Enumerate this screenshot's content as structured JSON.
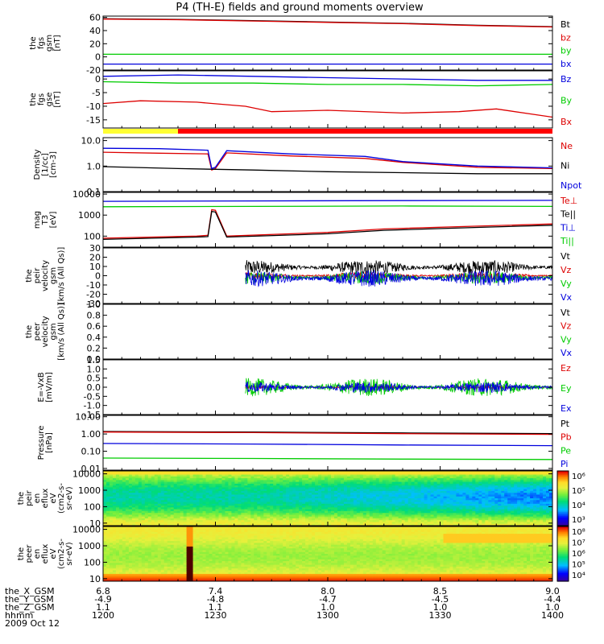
{
  "title": "P4 (TH-E) fields and ground moments overview",
  "chart_data": {
    "type": "line",
    "title": "P4 (TH-E) fields and ground moments overview",
    "x": {
      "hhmm": [
        "1200",
        "1230",
        "1300",
        "1330",
        "1400"
      ],
      "the_X_GSM": [
        "6.8",
        "7.4",
        "8.0",
        "8.5",
        "9.0"
      ],
      "the_Y_GSM": [
        "-4.9",
        "-4.8",
        "-4.7",
        "-4.5",
        "-4.4"
      ],
      "the_Z_GSM": [
        "1.1",
        "1.1",
        "1.0",
        "1.0",
        "1.0"
      ],
      "row_labels": [
        "the_X_GSM",
        "the_Y_GSM",
        "the_Z_GSM",
        "hhmm"
      ],
      "date": "2009 Oct 12",
      "range_min": [
        0,
        120
      ]
    },
    "panels": [
      {
        "id": "fgs-gsm",
        "ylabel": [
          "the",
          "fgs",
          "gsm",
          "[nT]"
        ],
        "yscale": "linear",
        "ylim": [
          -20,
          62
        ],
        "yticks": [
          "60",
          "40",
          "20",
          "0",
          "-20"
        ],
        "ytick_values": [
          60,
          40,
          20,
          0,
          -20
        ],
        "series": [
          {
            "name": "Bt",
            "color": "#000000",
            "points": [
              [
                0,
                58
              ],
              [
                20,
                57
              ],
              [
                40,
                55
              ],
              [
                60,
                53
              ],
              [
                80,
                51
              ],
              [
                100,
                48
              ],
              [
                120,
                46
              ]
            ]
          },
          {
            "name": "bz",
            "color": "#dd0000",
            "points": [
              [
                0,
                57.5
              ],
              [
                20,
                56.5
              ],
              [
                40,
                54.5
              ],
              [
                60,
                52.5
              ],
              [
                80,
                50.5
              ],
              [
                100,
                47.5
              ],
              [
                120,
                45.5
              ]
            ]
          },
          {
            "name": "by",
            "color": "#00cc00",
            "points": [
              [
                0,
                4
              ],
              [
                40,
                4
              ],
              [
                80,
                4
              ],
              [
                120,
                4
              ]
            ]
          },
          {
            "name": "bx",
            "color": "#0000dd",
            "points": [
              [
                0,
                -11
              ],
              [
                40,
                -11
              ],
              [
                80,
                -11
              ],
              [
                120,
                -11
              ]
            ]
          }
        ]
      },
      {
        "id": "fgs-gse",
        "ylabel": [
          "the",
          "fgs",
          "gse",
          "[nT]"
        ],
        "yscale": "linear",
        "ylim": [
          -18,
          3
        ],
        "yticks": [
          "0",
          "-5",
          "-10",
          "-15"
        ],
        "ytick_values": [
          0,
          -5,
          -10,
          -15
        ],
        "series": [
          {
            "name": "Bz",
            "color": "#0000dd",
            "points": [
              [
                0,
                1
              ],
              [
                20,
                1.5
              ],
              [
                40,
                1
              ],
              [
                60,
                0.5
              ],
              [
                80,
                0
              ],
              [
                100,
                -0.5
              ],
              [
                120,
                -0.5
              ]
            ]
          },
          {
            "name": "By",
            "color": "#00cc00",
            "points": [
              [
                0,
                -1
              ],
              [
                20,
                -1.5
              ],
              [
                40,
                -1.5
              ],
              [
                60,
                -2
              ],
              [
                80,
                -2
              ],
              [
                100,
                -2.5
              ],
              [
                120,
                -2
              ]
            ]
          },
          {
            "name": "Bx",
            "color": "#dd0000",
            "points": [
              [
                0,
                -9
              ],
              [
                10,
                -8
              ],
              [
                25,
                -8.5
              ],
              [
                38,
                -10
              ],
              [
                45,
                -12
              ],
              [
                60,
                -11.5
              ],
              [
                80,
                -12.5
              ],
              [
                95,
                -12
              ],
              [
                105,
                -11
              ],
              [
                115,
                -13
              ],
              [
                120,
                -14
              ]
            ]
          }
        ]
      },
      {
        "id": "density",
        "ylabel": [
          "Density",
          "[1/cc]",
          "[cm-3]"
        ],
        "yscale": "log",
        "ylim": [
          0.1,
          13
        ],
        "yticks": [
          "10.0",
          "1.0",
          "0.1"
        ],
        "ytick_values": [
          10,
          1,
          0.1
        ],
        "series": [
          {
            "name": "Ne",
            "color": "#dd0000",
            "points": [
              [
                0,
                3.5
              ],
              [
                15,
                3.2
              ],
              [
                28,
                3.0
              ],
              [
                29,
                0.7
              ],
              [
                30,
                0.8
              ],
              [
                33,
                3.3
              ],
              [
                50,
                2.5
              ],
              [
                70,
                2.0
              ],
              [
                80,
                1.4
              ],
              [
                100,
                0.9
              ],
              [
                120,
                0.8
              ]
            ]
          },
          {
            "name": "Ni",
            "color": "#000000",
            "points": [
              [
                0,
                0.95
              ],
              [
                20,
                0.8
              ],
              [
                40,
                0.7
              ],
              [
                60,
                0.6
              ],
              [
                80,
                0.55
              ],
              [
                100,
                0.5
              ],
              [
                120,
                0.5
              ]
            ]
          },
          {
            "name": "Npot",
            "color": "#0000dd",
            "points": [
              [
                0,
                5.0
              ],
              [
                15,
                4.8
              ],
              [
                28,
                4.2
              ],
              [
                29,
                0.8
              ],
              [
                30,
                0.9
              ],
              [
                33,
                4.0
              ],
              [
                50,
                3.0
              ],
              [
                70,
                2.4
              ],
              [
                80,
                1.5
              ],
              [
                100,
                1.0
              ],
              [
                120,
                0.85
              ]
            ]
          }
        ]
      },
      {
        "id": "temperature",
        "ylabel": [
          "mag",
          "T3",
          "[eV]"
        ],
        "yscale": "log",
        "ylim": [
          30,
          12000
        ],
        "yticks": [
          "10000",
          "1000",
          "100"
        ],
        "ytick_values": [
          10000,
          1000,
          100
        ],
        "series": [
          {
            "name": "Te⊥",
            "color": "#dd0000",
            "points": [
              [
                0,
                80
              ],
              [
                25,
                100
              ],
              [
                28,
                110
              ],
              [
                29,
                1800
              ],
              [
                30,
                1700
              ],
              [
                33,
                100
              ],
              [
                60,
                150
              ],
              [
                75,
                220
              ],
              [
                100,
                300
              ],
              [
                120,
                380
              ]
            ]
          },
          {
            "name": "Te||",
            "color": "#000000",
            "points": [
              [
                0,
                70
              ],
              [
                25,
                90
              ],
              [
                28,
                95
              ],
              [
                29,
                1500
              ],
              [
                30,
                1400
              ],
              [
                33,
                90
              ],
              [
                60,
                130
              ],
              [
                75,
                190
              ],
              [
                100,
                260
              ],
              [
                120,
                330
              ]
            ]
          },
          {
            "name": "Ti⊥",
            "color": "#0000dd",
            "points": [
              [
                0,
                4500
              ],
              [
                40,
                4700
              ],
              [
                80,
                4900
              ],
              [
                120,
                5000
              ]
            ]
          },
          {
            "name": "Ti||",
            "color": "#00cc00",
            "points": [
              [
                0,
                2500
              ],
              [
                40,
                2600
              ],
              [
                80,
                2700
              ],
              [
                120,
                2600
              ]
            ]
          }
        ]
      },
      {
        "id": "peir-velocity",
        "ylabel": [
          "the",
          "peir",
          "velocity",
          "gsm",
          "[km/s (All Qs)]"
        ],
        "yscale": "linear",
        "ylim": [
          -30,
          30
        ],
        "yticks": [
          "30",
          "20",
          "10",
          "0",
          "-10",
          "-20",
          "-30"
        ],
        "ytick_values": [
          30,
          20,
          10,
          0,
          -10,
          -20,
          -30
        ],
        "noise_start": 38,
        "series": [
          {
            "name": "Vt",
            "color": "#000000",
            "center": 9,
            "amp": 8
          },
          {
            "name": "Vz",
            "color": "#dd0000",
            "center": 0,
            "amp": 4
          },
          {
            "name": "Vy",
            "color": "#00cc00",
            "center": -2,
            "amp": 7
          },
          {
            "name": "Vx",
            "color": "#0000dd",
            "center": -3,
            "amp": 9
          }
        ]
      },
      {
        "id": "peer-velocity",
        "ylabel": [
          "the",
          "peer",
          "velocity",
          "gsm",
          "[km/s (All Qs)]"
        ],
        "yscale": "linear",
        "ylim": [
          0,
          1
        ],
        "yticks": [
          "1.0",
          "0.8",
          "0.6",
          "0.4",
          "0.2",
          "0.0"
        ],
        "ytick_values": [
          1.0,
          0.8,
          0.6,
          0.4,
          0.2,
          0.0
        ],
        "series": [
          {
            "name": "Vt",
            "color": "#000000"
          },
          {
            "name": "Vz",
            "color": "#dd0000"
          },
          {
            "name": "Vy",
            "color": "#00cc00"
          },
          {
            "name": "Vx",
            "color": "#0000dd"
          }
        ]
      },
      {
        "id": "efield",
        "ylabel": [
          "E=-VxB",
          "[mV/m]"
        ],
        "yscale": "linear",
        "ylim": [
          -1.5,
          1.5
        ],
        "yticks": [
          "1.5",
          "1.0",
          "0.5",
          "0.0",
          "-0.5",
          "-1.0",
          "-1.5"
        ],
        "ytick_values": [
          1.5,
          1.0,
          0.5,
          0.0,
          -0.5,
          -1.0,
          -1.5
        ],
        "noise_start": 38,
        "series": [
          {
            "name": "Ez",
            "color": "#dd0000",
            "center": 0,
            "amp": 0.08
          },
          {
            "name": "Ey",
            "color": "#00cc00",
            "center": 0,
            "amp": 0.5
          },
          {
            "name": "Ex",
            "color": "#0000dd",
            "center": 0,
            "amp": 0.3
          }
        ]
      },
      {
        "id": "pressure",
        "ylabel": [
          "Pressure",
          "[nPa]"
        ],
        "yscale": "log",
        "ylim": [
          0.008,
          12
        ],
        "yticks": [
          "10.00",
          "1.00",
          "0.10",
          "0.01"
        ],
        "ytick_values": [
          10,
          1,
          0.1,
          0.01
        ],
        "series": [
          {
            "name": "Pt",
            "color": "#000000",
            "points": [
              [
                0,
                1.4
              ],
              [
                40,
                1.3
              ],
              [
                80,
                1.15
              ],
              [
                120,
                1.05
              ]
            ]
          },
          {
            "name": "Pb",
            "color": "#dd0000",
            "points": [
              [
                0,
                1.3
              ],
              [
                40,
                1.2
              ],
              [
                80,
                1.05
              ],
              [
                120,
                0.95
              ]
            ]
          },
          {
            "name": "Pe",
            "color": "#00cc00",
            "points": [
              [
                0,
                0.04
              ],
              [
                40,
                0.038
              ],
              [
                80,
                0.035
              ],
              [
                120,
                0.033
              ]
            ]
          },
          {
            "name": "Pi",
            "color": "#0000dd",
            "points": [
              [
                0,
                0.28
              ],
              [
                40,
                0.26
              ],
              [
                80,
                0.23
              ],
              [
                120,
                0.21
              ]
            ]
          }
        ]
      },
      {
        "id": "peir-eflux",
        "type": "heatmap",
        "ylabel": [
          "the",
          "peir",
          "en",
          "eflux",
          "eV",
          "(cm2-s-",
          "sr-eV)"
        ],
        "yscale": "log",
        "ylim": [
          7,
          15000
        ],
        "yticks": [
          "10000",
          "1000",
          "100",
          "10"
        ],
        "ytick_values": [
          10000,
          1000,
          100,
          10
        ],
        "colorbar": {
          "labels": [
            "10⁶",
            "10⁵",
            "10⁴",
            "10³"
          ],
          "label_values": [
            6,
            5,
            4,
            3
          ]
        }
      },
      {
        "id": "peer-eflux",
        "type": "heatmap",
        "ylabel": [
          "the",
          "peer",
          "en",
          "eflux",
          "eV",
          "(cm2-s-",
          "sr-eV)"
        ],
        "yscale": "log",
        "ylim": [
          7,
          15000
        ],
        "yticks": [
          "10000",
          "1000",
          "100",
          "10"
        ],
        "ytick_values": [
          10000,
          1000,
          100,
          10
        ],
        "colorbar": {
          "labels": [
            "10⁸",
            "10⁷",
            "10⁶",
            "10⁵",
            "10⁴"
          ],
          "label_values": [
            8,
            7,
            6,
            5,
            4
          ]
        }
      }
    ],
    "mode_bar": {
      "segments": [
        {
          "from": 0,
          "to": 20,
          "color": "#ffff33"
        },
        {
          "from": 20,
          "to": 120,
          "color": "#ff0000"
        }
      ]
    }
  }
}
